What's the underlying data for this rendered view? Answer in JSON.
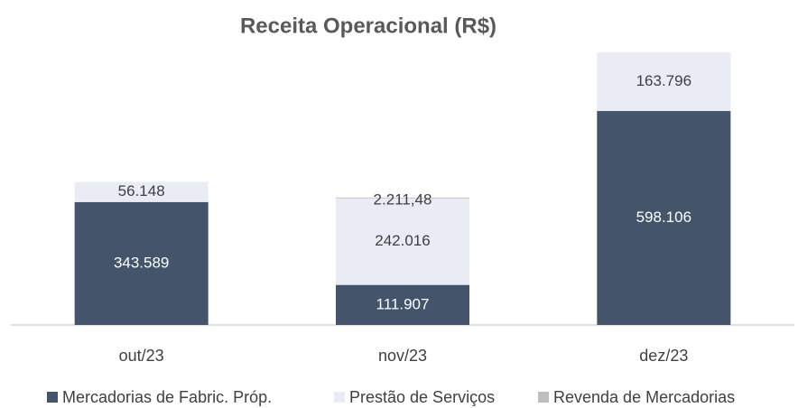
{
  "chart_data": {
    "type": "stacked_bar",
    "title": "Receita Operacional (R$)",
    "categories": [
      "out/23",
      "nov/23",
      "dez/23"
    ],
    "series": [
      {
        "name": "Mercadorias de Fabric. Próp.",
        "color": "#44546a",
        "values": [
          343589,
          111907,
          598106
        ],
        "value_labels": [
          "343.589",
          "111.907",
          "598.106"
        ]
      },
      {
        "name": "Prestão de Serviços",
        "color": "#e9ebf5",
        "values": [
          56148,
          242016,
          163796
        ],
        "value_labels": [
          "56.148",
          "242.016",
          "163.796"
        ]
      },
      {
        "name": "Revenda de Mercadorias",
        "color": "#bfbfbf",
        "values": [
          null,
          2211.48,
          null
        ],
        "value_labels": [
          null,
          "2.211,48",
          null
        ]
      }
    ],
    "legend": "bottom"
  }
}
